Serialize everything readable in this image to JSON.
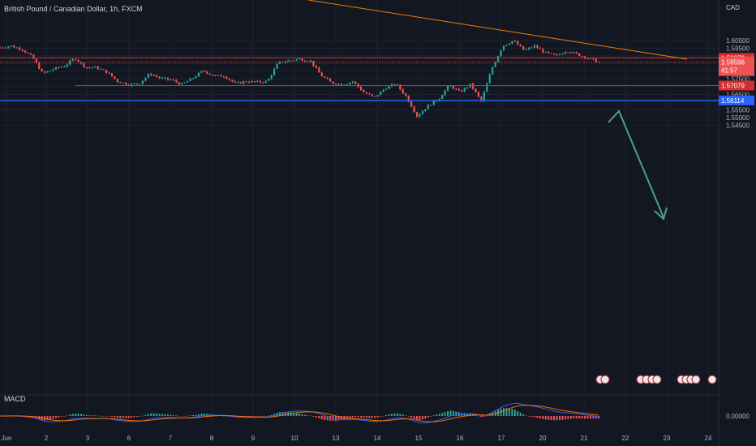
{
  "header": {
    "title": "British Pound / Canadian Dollar, 1h, FXCM",
    "currency": "CAD"
  },
  "macd": {
    "label": "MACD",
    "zero_label": "0.00000"
  },
  "colors": {
    "background": "#131722",
    "up": "#26a69a",
    "down": "#ef5350",
    "red_line": "#d32f2f",
    "blue_line": "#2962ff",
    "trendline": "#f57c00",
    "arrow": "#4f9f8a",
    "macd_line": "#2962ff",
    "signal_line": "#ff6d00"
  },
  "chart_data": {
    "type": "candlestick",
    "y_range": [
      1.5415,
      1.6063
    ],
    "y_ticks": [
      "1.60000",
      "1.59500",
      "1.59000",
      "1.58500",
      "1.58000",
      "1.57500",
      "1.57000",
      "1.56500",
      "1.56000",
      "1.55500",
      "1.55000",
      "1.54500"
    ],
    "x_ticks": [
      "Jun",
      "2",
      "3",
      "6",
      "7",
      "8",
      "9",
      "10",
      "13",
      "14",
      "15",
      "16",
      "17",
      "20",
      "21",
      "22",
      "23",
      "24"
    ],
    "levels": [
      {
        "value": 1.58872,
        "label": "1.58872",
        "color": "#d32f2f"
      },
      {
        "value": 1.57079,
        "label": "1.57079",
        "color": "#d32f2f"
      },
      {
        "value": 1.56114,
        "label": "1.56114",
        "color": "#2962ff"
      }
    ],
    "current_price": {
      "value": 1.58596,
      "label": "1.58596",
      "countdown": "41:57"
    },
    "price_path": [
      1.5955,
      1.5965,
      1.5945,
      1.5895,
      1.5785,
      1.5815,
      1.5835,
      1.5885,
      1.5825,
      1.5825,
      1.5795,
      1.5735,
      1.5715,
      1.572,
      1.5785,
      1.5755,
      1.5745,
      1.5715,
      1.5755,
      1.5805,
      1.577,
      1.577,
      1.572,
      1.5735,
      1.573,
      1.5735,
      1.5855,
      1.587,
      1.588,
      1.587,
      1.5775,
      1.5725,
      1.5715,
      1.5735,
      1.5665,
      1.563,
      1.569,
      1.572,
      1.5635,
      1.551,
      1.5575,
      1.562,
      1.571,
      1.5665,
      1.5715,
      1.5605,
      1.582,
      1.5965,
      1.6,
      1.5935,
      1.5965,
      1.592,
      1.59,
      1.5935,
      1.591,
      1.5885,
      1.586
    ]
  }
}
